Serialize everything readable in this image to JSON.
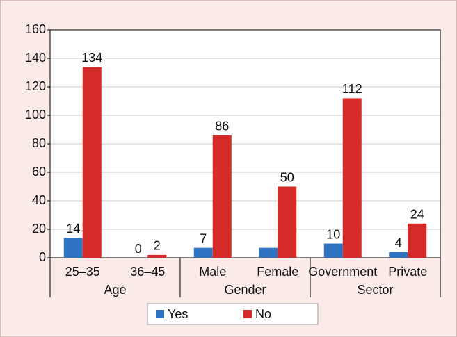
{
  "chart_data": {
    "type": "bar",
    "categories": [
      "25–35",
      "36–45",
      "Male",
      "Female",
      "Government",
      "Private"
    ],
    "groups": [
      {
        "label": "Age",
        "size": 2
      },
      {
        "label": "Gender",
        "size": 2
      },
      {
        "label": "Sector",
        "size": 2
      }
    ],
    "series": [
      {
        "name": "Yes",
        "color": "#2e73c2",
        "values": [
          14,
          0,
          7,
          7,
          10,
          4
        ],
        "value_labels": [
          "14",
          "0",
          "7",
          null,
          "10",
          "4"
        ]
      },
      {
        "name": "No",
        "color": "#d42a28",
        "values": [
          134,
          2,
          86,
          50,
          112,
          24
        ]
      }
    ],
    "ylim": [
      0,
      160
    ],
    "yticks": [
      0,
      20,
      40,
      60,
      80,
      100,
      120,
      140,
      160
    ],
    "grid": true,
    "legend": "bottom"
  }
}
